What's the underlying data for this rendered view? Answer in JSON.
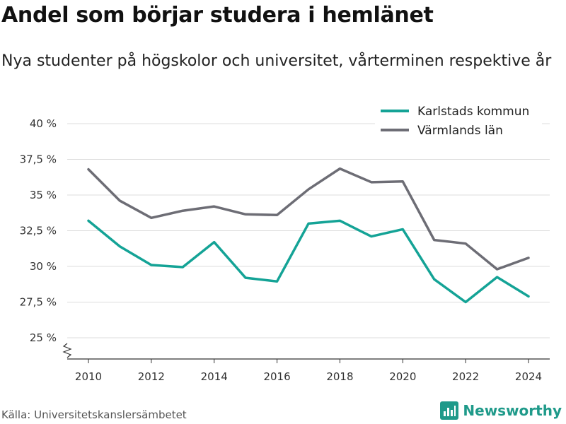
{
  "title": "Andel som börjar studera i hemlänet",
  "subtitle": "Nya studenter på högskolor och universitet, vårterminen respektive år",
  "source": "Källa: Universitetskanslersämbetet",
  "brand": {
    "name": "Newsworthy",
    "icon": "newsworthy-logo-icon",
    "color": "#1f9a8a"
  },
  "chart_data": {
    "type": "line",
    "x": [
      2010,
      2011,
      2012,
      2013,
      2014,
      2015,
      2016,
      2017,
      2018,
      2019,
      2020,
      2021,
      2022,
      2023,
      2024
    ],
    "x_ticks": [
      "2010",
      "2012",
      "2014",
      "2016",
      "2018",
      "2020",
      "2022",
      "2024"
    ],
    "y_ticks": [
      25,
      27.5,
      30,
      32.5,
      35,
      37.5,
      40
    ],
    "y_tick_labels": [
      "25 %",
      "27,5 %",
      "30 %",
      "32,5 %",
      "35 %",
      "37,5 %",
      "40 %"
    ],
    "ylim": [
      25,
      40
    ],
    "axis_break": true,
    "grid": true,
    "legend_position": "top-right",
    "series": [
      {
        "name": "Karlstads kommun",
        "color": "#14a396",
        "values": [
          33.2,
          31.4,
          30.1,
          29.95,
          31.7,
          29.2,
          28.95,
          33.0,
          33.2,
          32.1,
          32.6,
          29.1,
          27.5,
          29.25,
          27.9
        ]
      },
      {
        "name": "Värmlands län",
        "color": "#6d6d75",
        "values": [
          36.8,
          34.6,
          33.4,
          33.9,
          34.2,
          33.65,
          33.6,
          35.4,
          36.85,
          35.9,
          35.95,
          31.85,
          31.6,
          29.8,
          30.6
        ]
      }
    ]
  }
}
